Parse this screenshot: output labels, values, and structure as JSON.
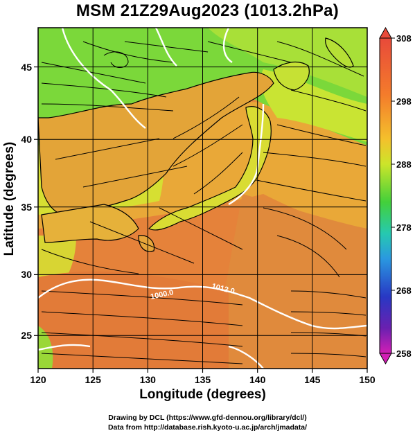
{
  "title": "MSM 21Z29Aug2023 (1013.2hPa)",
  "map": {
    "xlabel": "Longitude (degrees)",
    "ylabel": "Latitude  (degrees)",
    "lon_range": [
      120,
      150
    ],
    "lat_range": [
      22.4,
      47.6
    ],
    "lon_ticks": [
      "120",
      "125",
      "130",
      "135",
      "140",
      "145",
      "150"
    ],
    "lat_ticks": [
      "25",
      "30",
      "35",
      "40",
      "45"
    ],
    "grid": true,
    "contour_labels": [
      "1000.0",
      "1012.0"
    ],
    "field": "potential temperature with streamlines"
  },
  "colorbar": {
    "labels": [
      "308",
      "298",
      "288",
      "278",
      "268",
      "258"
    ],
    "colors": [
      "#e8443a",
      "#f47a2a",
      "#f7b52c",
      "#d7e62a",
      "#7ddb2c",
      "#2fcb3e",
      "#27c9b8",
      "#2a8fe0",
      "#2840c8",
      "#6a1fb8",
      "#cc1fb8"
    ]
  },
  "credits": {
    "line1": "Drawing by DCL (https://www.gfd-dennou.org/library/dcl/)",
    "line2": "Data from http://database.rish.kyoto-u.ac.jp/arch/jmadata/"
  }
}
